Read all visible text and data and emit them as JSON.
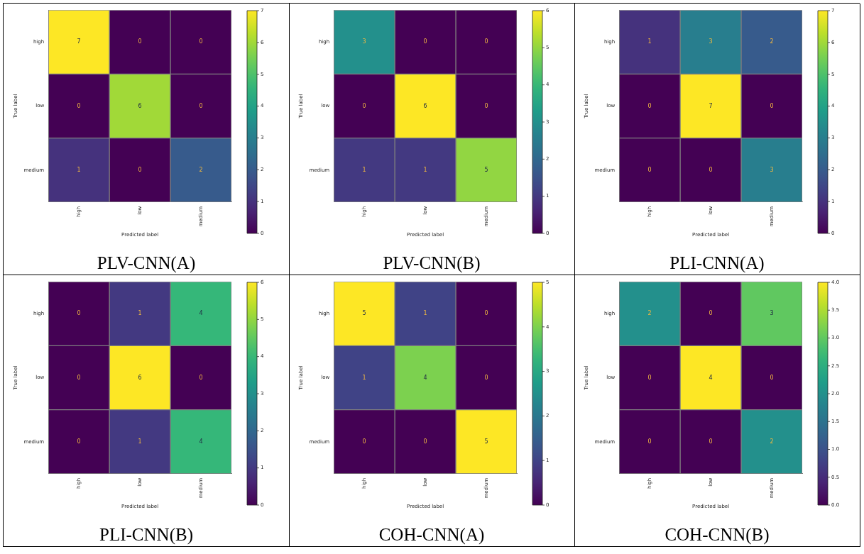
{
  "chart_data": [
    {
      "type": "heatmap",
      "title": "PLV-CNN(A)",
      "xlabel": "Predicted label",
      "ylabel": "True label",
      "categories": [
        "high",
        "low",
        "medium"
      ],
      "y_categories": [
        "high",
        "low",
        "medium"
      ],
      "cells": [
        [
          7,
          0,
          0
        ],
        [
          0,
          6,
          0
        ],
        [
          1,
          0,
          2
        ]
      ],
      "clim": [
        0,
        7
      ],
      "cticks": [
        0,
        1,
        2,
        3,
        4,
        5,
        6,
        7
      ],
      "data_labels": true
    },
    {
      "type": "heatmap",
      "title": "PLV-CNN(B)",
      "xlabel": "Predicted label",
      "ylabel": "True label",
      "categories": [
        "high",
        "low",
        "medium"
      ],
      "y_categories": [
        "high",
        "low",
        "medium"
      ],
      "cells": [
        [
          3,
          0,
          0
        ],
        [
          0,
          6,
          0
        ],
        [
          1,
          1,
          5
        ]
      ],
      "clim": [
        0,
        6
      ],
      "cticks": [
        0,
        1,
        2,
        3,
        4,
        5,
        6
      ],
      "data_labels": true
    },
    {
      "type": "heatmap",
      "title": "PLI-CNN(A)",
      "xlabel": "Predicted label",
      "ylabel": "True label",
      "categories": [
        "high",
        "low",
        "medium"
      ],
      "y_categories": [
        "high",
        "low",
        "medium"
      ],
      "cells": [
        [
          1,
          3,
          2
        ],
        [
          0,
          7,
          0
        ],
        [
          0,
          0,
          3
        ]
      ],
      "clim": [
        0,
        7
      ],
      "cticks": [
        0,
        1,
        2,
        3,
        4,
        5,
        6,
        7
      ],
      "data_labels": true
    },
    {
      "type": "heatmap",
      "title": "PLI-CNN(B)",
      "xlabel": "Predicted label",
      "ylabel": "True label",
      "categories": [
        "high",
        "low",
        "medium"
      ],
      "y_categories": [
        "high",
        "low",
        "medium"
      ],
      "cells": [
        [
          0,
          1,
          4
        ],
        [
          0,
          6,
          0
        ],
        [
          0,
          1,
          4
        ]
      ],
      "clim": [
        0,
        6
      ],
      "cticks": [
        0,
        1,
        2,
        3,
        4,
        5,
        6
      ],
      "data_labels": true
    },
    {
      "type": "heatmap",
      "title": "COH-CNN(A)",
      "xlabel": "Predicted label",
      "ylabel": "True label",
      "categories": [
        "high",
        "low",
        "medium"
      ],
      "y_categories": [
        "high",
        "low",
        "medium"
      ],
      "cells": [
        [
          5,
          1,
          0
        ],
        [
          1,
          4,
          0
        ],
        [
          0,
          0,
          5
        ]
      ],
      "clim": [
        0,
        5
      ],
      "cticks": [
        0,
        1,
        2,
        3,
        4,
        5
      ],
      "data_labels": true
    },
    {
      "type": "heatmap",
      "title": "COH-CNN(B)",
      "xlabel": "Predicted label",
      "ylabel": "True label",
      "categories": [
        "high",
        "low",
        "medium"
      ],
      "y_categories": [
        "high",
        "low",
        "medium"
      ],
      "cells": [
        [
          2,
          0,
          3
        ],
        [
          0,
          4,
          0
        ],
        [
          0,
          0,
          2
        ]
      ],
      "clim": [
        0,
        4
      ],
      "cticks": [
        {
          "value": 0,
          "label": "0.0"
        },
        {
          "value": 0.5,
          "label": "0.5"
        },
        {
          "value": 1,
          "label": "1.0"
        },
        {
          "value": 1.5,
          "label": "1.5"
        },
        {
          "value": 2,
          "label": "2.0"
        },
        {
          "value": 2.5,
          "label": "2.5"
        },
        {
          "value": 3,
          "label": "3.0"
        },
        {
          "value": 3.5,
          "label": "3.5"
        },
        {
          "value": 4,
          "label": "4.0"
        }
      ],
      "data_labels": true
    }
  ]
}
